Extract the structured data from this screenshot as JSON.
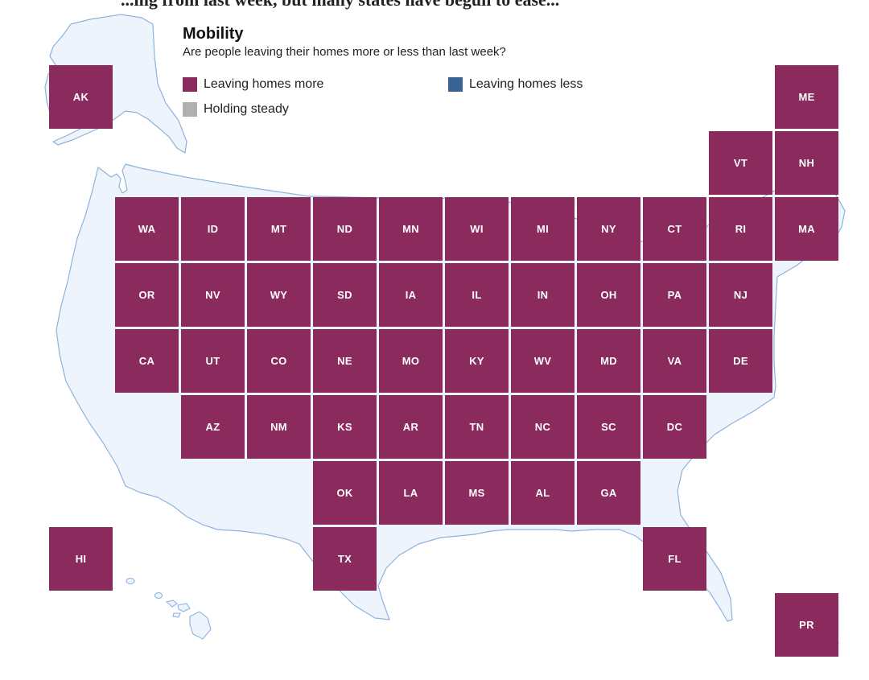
{
  "header_clip": "...ing from last week, but many states have begun to ease...",
  "title": "Mobility",
  "subtitle": "Are people leaving their homes more or less than last week?",
  "colors": {
    "more": "#8b2a5d",
    "less": "#3a6395",
    "steady": "#b0b0b0",
    "land": "#eef4fb",
    "outline": "#8db3dd"
  },
  "legend": [
    {
      "key": "more",
      "label": "Leaving homes more"
    },
    {
      "key": "less",
      "label": "Leaving homes less"
    },
    {
      "key": "steady",
      "label": "Holding steady"
    }
  ],
  "states": [
    {
      "abbr": "AK",
      "col": 0,
      "row": 0,
      "status": "more"
    },
    {
      "abbr": "ME",
      "col": 11,
      "row": 0,
      "status": "more"
    },
    {
      "abbr": "VT",
      "col": 10,
      "row": 1,
      "status": "more"
    },
    {
      "abbr": "NH",
      "col": 11,
      "row": 1,
      "status": "more"
    },
    {
      "abbr": "WA",
      "col": 1,
      "row": 2,
      "status": "more"
    },
    {
      "abbr": "ID",
      "col": 2,
      "row": 2,
      "status": "more"
    },
    {
      "abbr": "MT",
      "col": 3,
      "row": 2,
      "status": "more"
    },
    {
      "abbr": "ND",
      "col": 4,
      "row": 2,
      "status": "more"
    },
    {
      "abbr": "MN",
      "col": 5,
      "row": 2,
      "status": "more"
    },
    {
      "abbr": "WI",
      "col": 6,
      "row": 2,
      "status": "more"
    },
    {
      "abbr": "MI",
      "col": 7,
      "row": 2,
      "status": "more"
    },
    {
      "abbr": "NY",
      "col": 8,
      "row": 2,
      "status": "more"
    },
    {
      "abbr": "CT",
      "col": 9,
      "row": 2,
      "status": "more"
    },
    {
      "abbr": "RI",
      "col": 10,
      "row": 2,
      "status": "more"
    },
    {
      "abbr": "MA",
      "col": 11,
      "row": 2,
      "status": "more"
    },
    {
      "abbr": "OR",
      "col": 1,
      "row": 3,
      "status": "more"
    },
    {
      "abbr": "NV",
      "col": 2,
      "row": 3,
      "status": "more"
    },
    {
      "abbr": "WY",
      "col": 3,
      "row": 3,
      "status": "more"
    },
    {
      "abbr": "SD",
      "col": 4,
      "row": 3,
      "status": "more"
    },
    {
      "abbr": "IA",
      "col": 5,
      "row": 3,
      "status": "more"
    },
    {
      "abbr": "IL",
      "col": 6,
      "row": 3,
      "status": "more"
    },
    {
      "abbr": "IN",
      "col": 7,
      "row": 3,
      "status": "more"
    },
    {
      "abbr": "OH",
      "col": 8,
      "row": 3,
      "status": "more"
    },
    {
      "abbr": "PA",
      "col": 9,
      "row": 3,
      "status": "more"
    },
    {
      "abbr": "NJ",
      "col": 10,
      "row": 3,
      "status": "more"
    },
    {
      "abbr": "CA",
      "col": 1,
      "row": 4,
      "status": "more"
    },
    {
      "abbr": "UT",
      "col": 2,
      "row": 4,
      "status": "more"
    },
    {
      "abbr": "CO",
      "col": 3,
      "row": 4,
      "status": "more"
    },
    {
      "abbr": "NE",
      "col": 4,
      "row": 4,
      "status": "more"
    },
    {
      "abbr": "MO",
      "col": 5,
      "row": 4,
      "status": "more"
    },
    {
      "abbr": "KY",
      "col": 6,
      "row": 4,
      "status": "more"
    },
    {
      "abbr": "WV",
      "col": 7,
      "row": 4,
      "status": "more"
    },
    {
      "abbr": "MD",
      "col": 8,
      "row": 4,
      "status": "more"
    },
    {
      "abbr": "VA",
      "col": 9,
      "row": 4,
      "status": "more"
    },
    {
      "abbr": "DE",
      "col": 10,
      "row": 4,
      "status": "more"
    },
    {
      "abbr": "AZ",
      "col": 2,
      "row": 5,
      "status": "more"
    },
    {
      "abbr": "NM",
      "col": 3,
      "row": 5,
      "status": "more"
    },
    {
      "abbr": "KS",
      "col": 4,
      "row": 5,
      "status": "more"
    },
    {
      "abbr": "AR",
      "col": 5,
      "row": 5,
      "status": "more"
    },
    {
      "abbr": "TN",
      "col": 6,
      "row": 5,
      "status": "more"
    },
    {
      "abbr": "NC",
      "col": 7,
      "row": 5,
      "status": "more"
    },
    {
      "abbr": "SC",
      "col": 8,
      "row": 5,
      "status": "more"
    },
    {
      "abbr": "DC",
      "col": 9,
      "row": 5,
      "status": "more"
    },
    {
      "abbr": "OK",
      "col": 4,
      "row": 6,
      "status": "more"
    },
    {
      "abbr": "LA",
      "col": 5,
      "row": 6,
      "status": "more"
    },
    {
      "abbr": "MS",
      "col": 6,
      "row": 6,
      "status": "more"
    },
    {
      "abbr": "AL",
      "col": 7,
      "row": 6,
      "status": "more"
    },
    {
      "abbr": "GA",
      "col": 8,
      "row": 6,
      "status": "more"
    },
    {
      "abbr": "HI",
      "col": 0,
      "row": 7,
      "status": "more"
    },
    {
      "abbr": "TX",
      "col": 4,
      "row": 7,
      "status": "more"
    },
    {
      "abbr": "FL",
      "col": 9,
      "row": 7,
      "status": "more"
    },
    {
      "abbr": "PR",
      "col": 11,
      "row": 8,
      "status": "more"
    }
  ]
}
